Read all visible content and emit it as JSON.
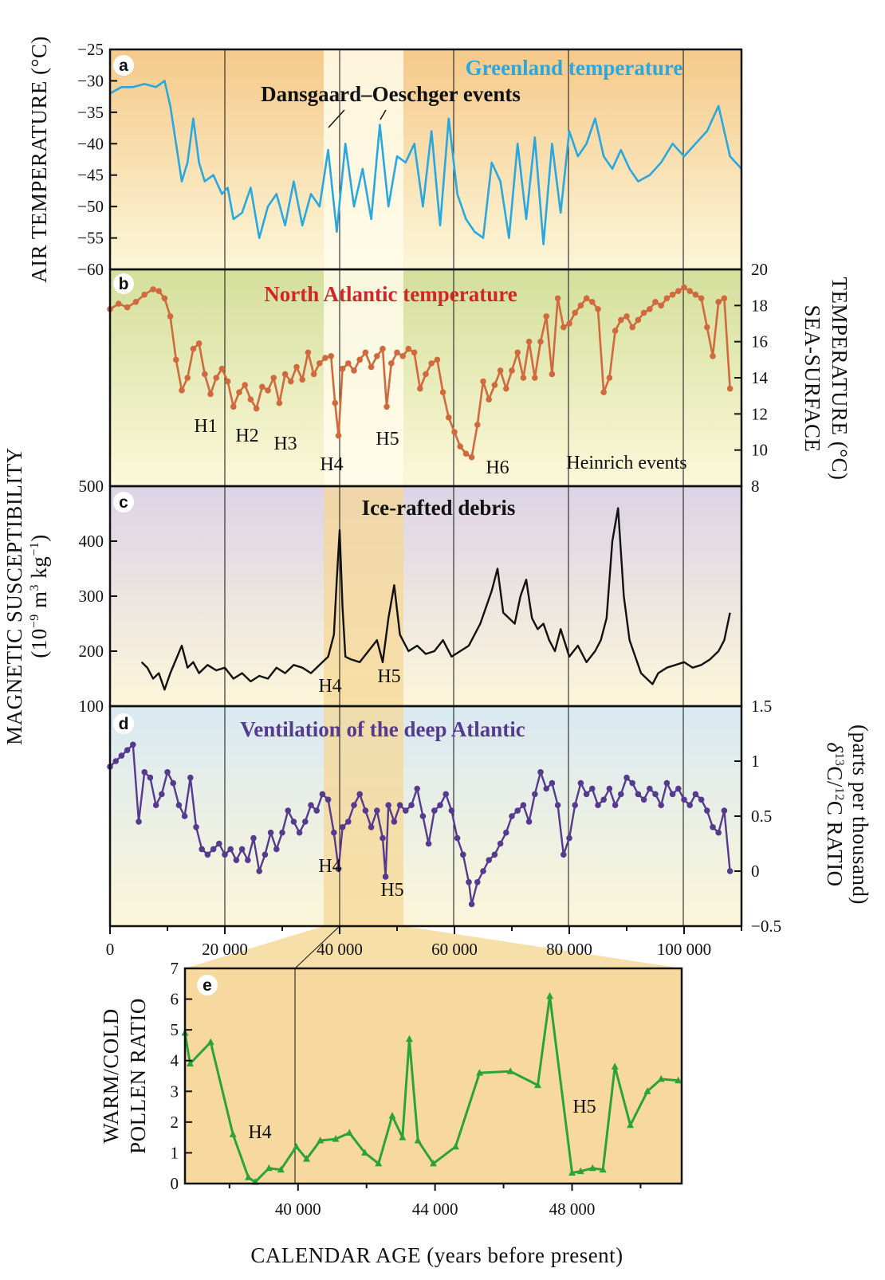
{
  "figure": {
    "panel_letters": [
      "a",
      "b",
      "c",
      "d",
      "e"
    ],
    "xaxis_label": "CALENDAR AGE (years before present)"
  },
  "colors": {
    "panel_a": "#29a8e0",
    "panel_b": "#d06a3e",
    "panel_c": "#111111",
    "panel_d": "#553a8e",
    "panel_e": "#2ba33a",
    "title_b": "#d0262a"
  },
  "chart_data": [
    {
      "id": "a",
      "type": "line",
      "title": "Greenland temperature",
      "annotation": "Dansgaard–Oeschger events",
      "ylabel": "AIR TEMPERATURE (°C)",
      "xlim": [
        0,
        110000
      ],
      "ylim": [
        -60,
        -25
      ],
      "yticks": [
        -25,
        -30,
        -35,
        -40,
        -45,
        -50,
        -55,
        -60
      ],
      "ytick_labels": [
        "−25",
        "−30",
        "−35",
        "−40",
        "−45",
        "−50",
        "−55",
        "−60"
      ],
      "x": [
        0,
        2000,
        4000,
        6000,
        8000,
        9500,
        10500,
        11500,
        12500,
        13500,
        14500,
        15500,
        16500,
        18000,
        19500,
        20500,
        21500,
        23000,
        24500,
        26000,
        27500,
        29000,
        30500,
        32000,
        33500,
        35000,
        36500,
        38000,
        39500,
        41000,
        42500,
        44000,
        45500,
        47000,
        48500,
        50000,
        51500,
        53000,
        54500,
        56000,
        57500,
        59000,
        60500,
        62000,
        63500,
        65000,
        66500,
        68000,
        69500,
        71000,
        72500,
        74000,
        75500,
        77000,
        78500,
        80000,
        81500,
        83000,
        84500,
        86000,
        87500,
        89000,
        90500,
        92000,
        94000,
        96000,
        98000,
        100000,
        102000,
        104000,
        106000,
        108000,
        110000
      ],
      "values": [
        -32,
        -31,
        -31,
        -30.5,
        -31,
        -30,
        -34,
        -40,
        -46,
        -43,
        -36,
        -43,
        -46,
        -45,
        -48,
        -47,
        -52,
        -51,
        -47,
        -55,
        -50,
        -48,
        -53,
        -46,
        -53,
        -48,
        -50,
        -41,
        -54,
        -40,
        -50,
        -44,
        -52,
        -37,
        -50,
        -42,
        -43,
        -40,
        -50,
        -38,
        -53,
        -36,
        -48,
        -52,
        -54,
        -55,
        -43,
        -46,
        -55,
        -40,
        -52,
        -39,
        -56,
        -40,
        -51,
        -38,
        -42,
        -40,
        -36,
        -42,
        -44,
        -41,
        -44,
        -46,
        -45,
        -43,
        -40,
        -42,
        -40,
        -38,
        -34,
        -42,
        -44
      ]
    },
    {
      "id": "b",
      "type": "line",
      "title": "North Atlantic temperature",
      "annotation": "Heinrich events",
      "ylabel": "SEA-SURFACE TEMPERATURE (°C)",
      "xlim": [
        0,
        110000
      ],
      "ylim": [
        8,
        20
      ],
      "yticks": [
        8,
        10,
        12,
        14,
        16,
        18,
        20
      ],
      "ytick_labels": [
        "8",
        "10",
        "12",
        "14",
        "16",
        "18",
        "20"
      ],
      "event_labels": [
        "H1",
        "H2",
        "H3",
        "H4",
        "H5",
        "H6"
      ],
      "x": [
        0,
        1500,
        3000,
        4500,
        6000,
        7500,
        8500,
        9500,
        10500,
        11500,
        12500,
        13500,
        14500,
        15500,
        16500,
        17500,
        18500,
        19500,
        20500,
        21500,
        22500,
        23500,
        24500,
        25500,
        26500,
        27500,
        28500,
        29500,
        30500,
        31500,
        32500,
        33500,
        34500,
        35500,
        36500,
        37500,
        38500,
        39200,
        39800,
        40500,
        41500,
        42500,
        43500,
        44500,
        45500,
        46500,
        47500,
        48200,
        49000,
        50000,
        51000,
        52000,
        53000,
        54000,
        55000,
        56000,
        57000,
        58000,
        59000,
        60000,
        61000,
        62000,
        63000,
        64000,
        65000,
        66000,
        67000,
        68000,
        69000,
        70000,
        71000,
        72000,
        73000,
        74000,
        75000,
        76000,
        77000,
        78000,
        79000,
        80000,
        81000,
        82000,
        83000,
        84000,
        85000,
        86000,
        87000,
        88000,
        89000,
        90000,
        91000,
        92000,
        93000,
        94000,
        95000,
        96000,
        97000,
        98000,
        99000,
        100000,
        101000,
        102000,
        103000,
        104000,
        105000,
        106000,
        107000,
        108000
      ],
      "values": [
        17.8,
        18.1,
        17.9,
        18.2,
        18.6,
        18.9,
        18.8,
        18.4,
        17.4,
        15.0,
        13.3,
        14.0,
        15.6,
        15.9,
        14.2,
        13.1,
        14.0,
        14.5,
        13.8,
        12.4,
        13.2,
        13.6,
        12.8,
        12.3,
        13.5,
        13.3,
        14.0,
        12.6,
        14.2,
        13.8,
        14.6,
        13.9,
        15.4,
        14.2,
        14.8,
        15.1,
        15.2,
        12.6,
        10.8,
        14.5,
        14.8,
        14.4,
        15.0,
        15.4,
        14.6,
        15.2,
        15.6,
        12.4,
        14.8,
        15.4,
        15.2,
        15.6,
        15.4,
        13.4,
        14.2,
        14.8,
        15.0,
        13.2,
        11.8,
        11.0,
        10.2,
        9.8,
        9.6,
        11.4,
        13.8,
        12.8,
        13.6,
        14.4,
        13.4,
        14.4,
        15.4,
        14.0,
        16.0,
        14.0,
        16.0,
        17.4,
        14.2,
        18.4,
        16.8,
        17.0,
        17.6,
        18.0,
        18.4,
        18.2,
        17.8,
        13.2,
        14.0,
        16.6,
        17.2,
        17.4,
        16.8,
        17.2,
        17.6,
        17.8,
        18.2,
        18.0,
        18.4,
        18.6,
        18.8,
        19.0,
        18.8,
        18.6,
        18.4,
        16.8,
        15.2,
        18.2,
        18.4,
        13.4
      ]
    },
    {
      "id": "c",
      "type": "line",
      "title": "Ice-rafted debris",
      "ylabel": "MAGNETIC SUSCEPTIBILITY (10⁻⁹ m³ kg⁻¹)",
      "xlim": [
        0,
        110000
      ],
      "ylim": [
        100,
        500
      ],
      "yticks": [
        100,
        200,
        300,
        400,
        500
      ],
      "ytick_labels": [
        "100",
        "200",
        "300",
        "400",
        "500"
      ],
      "event_labels": [
        "H4",
        "H5"
      ],
      "x": [
        5500,
        6500,
        7500,
        8500,
        9500,
        10500,
        11500,
        12500,
        13500,
        14500,
        15500,
        17000,
        18500,
        20000,
        21500,
        23000,
        24500,
        26000,
        27500,
        29000,
        30500,
        32000,
        33500,
        35000,
        36500,
        38000,
        39000,
        39500,
        40000,
        40500,
        41000,
        42000,
        43500,
        45000,
        46500,
        47500,
        48500,
        49500,
        50500,
        52000,
        53500,
        55000,
        56500,
        58000,
        59500,
        61000,
        62500,
        63500,
        64500,
        65500,
        66500,
        67500,
        68500,
        69500,
        70500,
        71500,
        72500,
        73500,
        74500,
        75500,
        76500,
        77500,
        78500,
        80000,
        81500,
        83000,
        84500,
        85500,
        86500,
        87500,
        88500,
        89500,
        90500,
        91500,
        92500,
        93500,
        94500,
        95500,
        97000,
        98500,
        100000,
        101500,
        103000,
        104500,
        106000,
        107000,
        108000
      ],
      "values": [
        180,
        170,
        150,
        160,
        130,
        160,
        185,
        210,
        170,
        180,
        160,
        175,
        165,
        170,
        150,
        160,
        145,
        155,
        150,
        170,
        160,
        175,
        170,
        160,
        175,
        190,
        230,
        330,
        420,
        280,
        190,
        185,
        180,
        200,
        220,
        180,
        260,
        320,
        230,
        200,
        210,
        195,
        200,
        220,
        190,
        200,
        210,
        230,
        250,
        280,
        310,
        350,
        270,
        260,
        250,
        300,
        330,
        260,
        240,
        250,
        220,
        200,
        240,
        190,
        210,
        180,
        200,
        220,
        260,
        400,
        460,
        300,
        220,
        190,
        160,
        150,
        140,
        160,
        170,
        175,
        180,
        170,
        175,
        185,
        200,
        220,
        270
      ]
    },
    {
      "id": "d",
      "type": "line",
      "title": "Ventilation of the deep Atlantic",
      "ylabel": "δ13C/12C RATIO (parts per thousand)",
      "xlim": [
        0,
        110000
      ],
      "ylim": [
        -0.5,
        1.5
      ],
      "yticks": [
        1.5,
        1,
        0.5,
        0,
        -0.5
      ],
      "ytick_labels": [
        "1.5",
        "1",
        "0.5",
        "0",
        "−0.5"
      ],
      "event_labels": [
        "H4",
        "H5"
      ],
      "x": [
        0,
        1000,
        2000,
        3000,
        4000,
        5000,
        6000,
        7000,
        8000,
        9000,
        10000,
        11000,
        12000,
        13000,
        14000,
        15000,
        16000,
        17000,
        18000,
        19000,
        20000,
        21000,
        22000,
        23000,
        24000,
        25000,
        26000,
        27000,
        28000,
        29000,
        30000,
        31000,
        32000,
        33000,
        34000,
        35000,
        36000,
        37000,
        38000,
        39000,
        39800,
        40500,
        41500,
        42500,
        43500,
        44500,
        45500,
        46500,
        47500,
        48000,
        48500,
        49500,
        50500,
        51500,
        52500,
        53500,
        54500,
        55500,
        56500,
        57500,
        58500,
        59500,
        60500,
        61500,
        62500,
        63000,
        64000,
        65000,
        66000,
        67000,
        68000,
        69000,
        70000,
        71000,
        72000,
        73000,
        74000,
        75000,
        76000,
        77000,
        78000,
        79000,
        80000,
        81000,
        82000,
        83000,
        84000,
        85000,
        86000,
        87000,
        88000,
        89000,
        90000,
        91000,
        92000,
        93000,
        94000,
        95000,
        96000,
        97000,
        98000,
        99000,
        100000,
        101000,
        102000,
        103000,
        104000,
        105000,
        106000,
        107000,
        108000
      ],
      "values": [
        0.95,
        1.0,
        1.05,
        1.1,
        1.15,
        0.45,
        0.9,
        0.85,
        0.6,
        0.7,
        0.9,
        0.8,
        0.6,
        0.5,
        0.85,
        0.4,
        0.2,
        0.15,
        0.2,
        0.25,
        0.15,
        0.2,
        0.1,
        0.2,
        0.1,
        0.3,
        0.0,
        0.15,
        0.35,
        0.2,
        0.35,
        0.55,
        0.45,
        0.35,
        0.45,
        0.6,
        0.55,
        0.7,
        0.65,
        0.35,
        0.02,
        0.4,
        0.45,
        0.6,
        0.7,
        0.55,
        0.4,
        0.55,
        0.3,
        -0.05,
        0.6,
        0.45,
        0.6,
        0.55,
        0.6,
        0.75,
        0.5,
        0.25,
        0.55,
        0.6,
        0.7,
        0.55,
        0.3,
        0.15,
        -0.1,
        -0.3,
        -0.1,
        0.0,
        0.1,
        0.15,
        0.25,
        0.35,
        0.5,
        0.55,
        0.6,
        0.45,
        0.7,
        0.9,
        0.75,
        0.8,
        0.6,
        0.15,
        0.3,
        0.6,
        0.8,
        0.7,
        0.75,
        0.6,
        0.65,
        0.75,
        0.6,
        0.7,
        0.85,
        0.8,
        0.7,
        0.65,
        0.75,
        0.7,
        0.6,
        0.8,
        0.7,
        0.75,
        0.65,
        0.6,
        0.7,
        0.65,
        0.55,
        0.4,
        0.35,
        0.55,
        0.0
      ]
    },
    {
      "id": "e",
      "type": "line",
      "ylabel": "WARM/COLD POLLEN RATIO",
      "xlabel": "CALENDAR AGE (years before present)",
      "xlim": [
        36700,
        51200
      ],
      "ylim": [
        0,
        7
      ],
      "yticks": [
        0,
        1,
        2,
        3,
        4,
        5,
        6,
        7
      ],
      "ytick_labels": [
        "0",
        "1",
        "2",
        "3",
        "4",
        "5",
        "6",
        "7"
      ],
      "xticks": [
        40000,
        44000,
        48000
      ],
      "xtick_labels": [
        "40 000",
        "44 000",
        "48 000"
      ],
      "event_labels": [
        "H4",
        "H5"
      ],
      "x": [
        36700,
        36850,
        37450,
        38100,
        38550,
        38750,
        39150,
        39500,
        39950,
        40250,
        40650,
        41100,
        41500,
        41950,
        42350,
        42750,
        43050,
        43250,
        43500,
        43950,
        44600,
        45300,
        46200,
        47000,
        47350,
        48000,
        48250,
        48600,
        48900,
        49250,
        49700,
        50200,
        50600,
        51100
      ],
      "values": [
        4.9,
        3.9,
        4.6,
        1.6,
        0.2,
        0.05,
        0.5,
        0.45,
        1.2,
        0.8,
        1.4,
        1.45,
        1.65,
        1.0,
        0.65,
        2.2,
        1.5,
        4.7,
        1.4,
        0.65,
        1.2,
        3.6,
        3.65,
        3.2,
        6.1,
        0.35,
        0.4,
        0.5,
        0.45,
        3.8,
        1.9,
        3.0,
        3.4,
        3.35
      ]
    }
  ]
}
